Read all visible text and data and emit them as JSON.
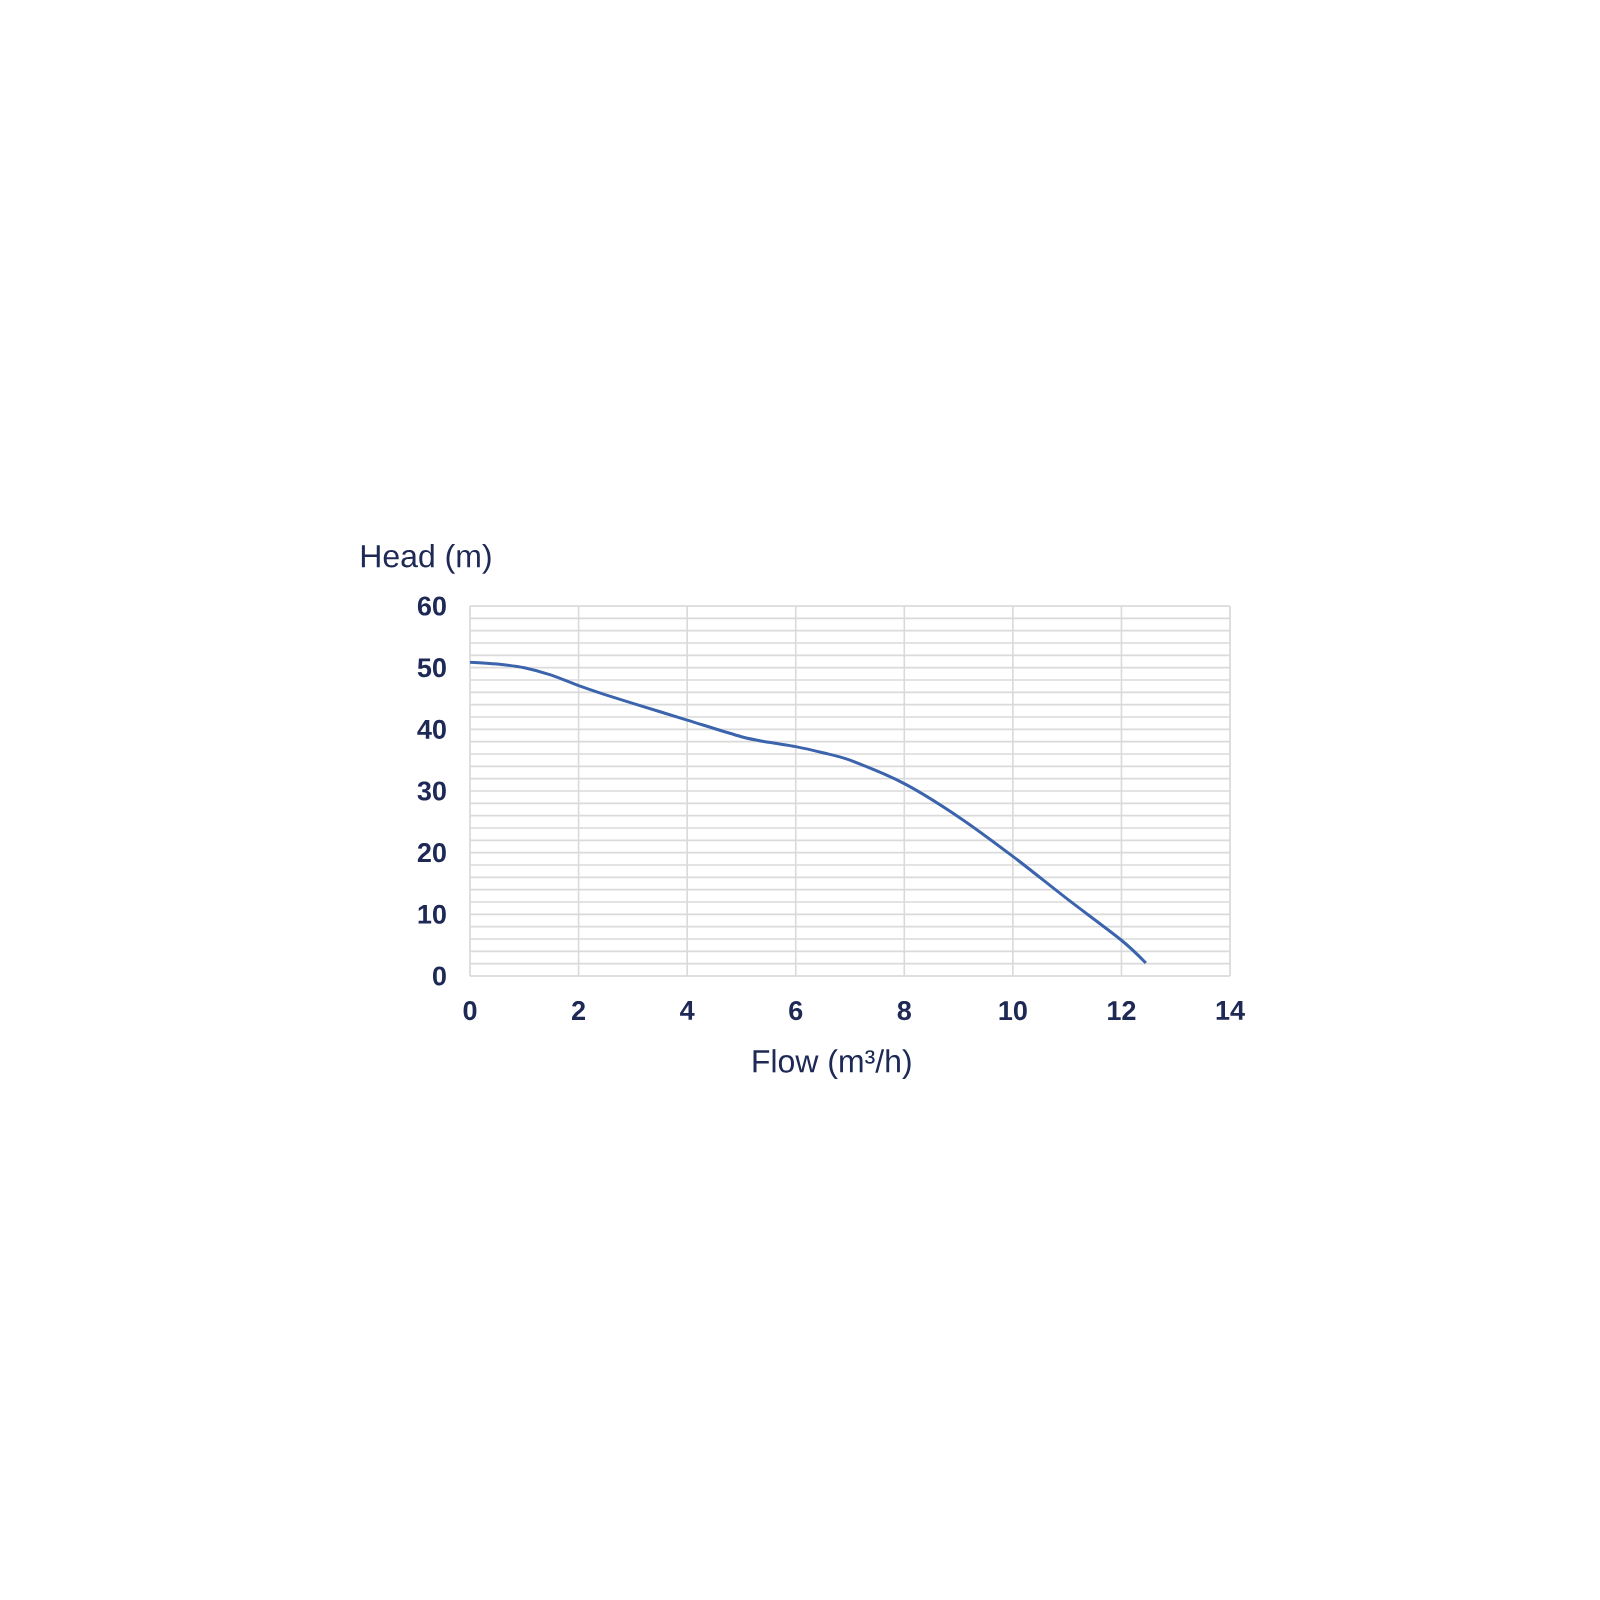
{
  "chart_data": {
    "type": "line",
    "xlabel": "Flow (m³/h)",
    "ylabel": "Head (m)",
    "x": [
      0,
      0.5,
      1,
      1.5,
      2,
      2.5,
      3,
      4,
      5,
      5.5,
      6,
      6.5,
      7,
      8,
      9,
      10,
      11,
      12,
      12.45
    ],
    "series": [
      {
        "color": "#3c64ad",
        "values": [
          50.9,
          50.6,
          50,
          48.8,
          47.1,
          45.6,
          44.2,
          41.5,
          38.8,
          37.9,
          37.2,
          36.2,
          35,
          31.2,
          25.8,
          19.4,
          12.5,
          5.8,
          2.1
        ]
      }
    ],
    "xlim": [
      0,
      14
    ],
    "ylim": [
      0,
      60
    ],
    "xticks": [
      0,
      2,
      4,
      6,
      8,
      10,
      12,
      14
    ],
    "yticks": [
      0,
      10,
      20,
      30,
      40,
      50,
      60
    ],
    "grid": true,
    "marker": "none",
    "line_style": "solid"
  }
}
